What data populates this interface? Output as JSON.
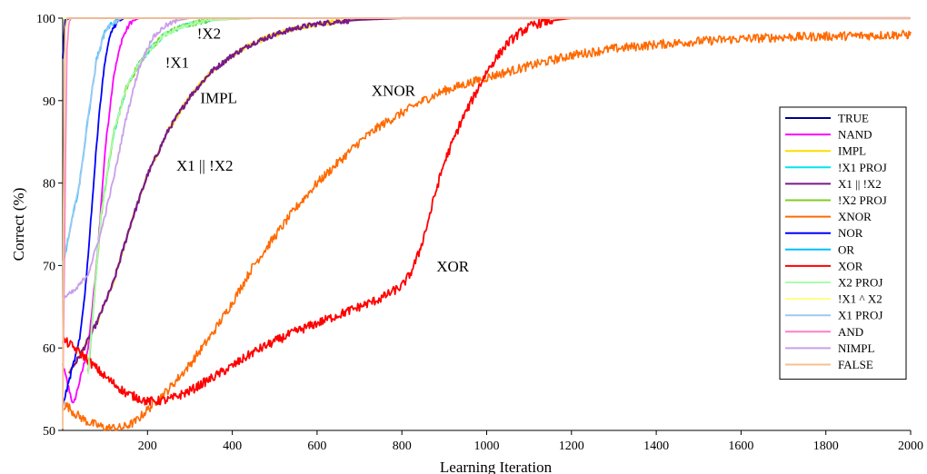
{
  "chart_data": {
    "type": "line",
    "xlabel": "Learning Iteration",
    "ylabel": "Correct (%)",
    "xlim": [
      0,
      2000
    ],
    "ylim": [
      50,
      100
    ],
    "xticks": [
      200,
      400,
      600,
      800,
      1000,
      1200,
      1400,
      1600,
      1800,
      2000
    ],
    "yticks": [
      50,
      60,
      70,
      80,
      90,
      100
    ],
    "grid": false,
    "legend_position": "right",
    "series": [
      {
        "name": "TRUE",
        "color": "#00008b",
        "width": 1.8,
        "x": [
          0,
          3,
          6,
          10,
          15,
          20,
          2000
        ],
        "y": [
          95,
          98,
          99.5,
          99.8,
          100,
          100,
          100
        ]
      },
      {
        "name": "NAND",
        "color": "#ff00ff",
        "width": 1.8,
        "x": [
          0,
          25,
          40,
          60,
          80,
          100,
          120,
          140,
          160,
          180,
          2000
        ],
        "y": [
          58,
          53,
          56,
          60,
          70,
          84,
          93,
          97.5,
          99.5,
          100,
          100
        ]
      },
      {
        "name": "IMPL",
        "color": "#ffdd00",
        "width": 1.8,
        "x": [
          15,
          40,
          80,
          120,
          160,
          200,
          250,
          300,
          350,
          400,
          450,
          500,
          550,
          600,
          650,
          700,
          750,
          800,
          900,
          1000,
          2000
        ],
        "y": [
          57,
          59,
          63,
          68,
          75,
          81,
          86.5,
          90.5,
          93.5,
          95.5,
          97,
          98,
          98.8,
          99.3,
          99.6,
          99.8,
          99.9,
          100,
          100,
          100,
          100
        ]
      },
      {
        "name": "!X1 PROJ",
        "color": "#00e5ee",
        "width": 1.8,
        "x": [
          60,
          90,
          120,
          150,
          180,
          210,
          240,
          280,
          320,
          360,
          400,
          450,
          500,
          550,
          2000
        ],
        "y": [
          57,
          76,
          86,
          91.5,
          94.5,
          96.5,
          98,
          99,
          99.5,
          99.8,
          99.9,
          100,
          100,
          100,
          100
        ]
      },
      {
        "name": "X1 || !X2",
        "color": "#7a1a8a",
        "width": 2.2,
        "x": [
          15,
          40,
          80,
          120,
          160,
          200,
          250,
          300,
          350,
          400,
          450,
          500,
          550,
          600,
          650,
          700,
          750,
          800,
          900,
          1000,
          2000
        ],
        "y": [
          57,
          59,
          63,
          68,
          75,
          81,
          86.5,
          90.5,
          93.5,
          95.5,
          97,
          98,
          98.8,
          99.3,
          99.6,
          99.8,
          99.9,
          100,
          100,
          100,
          100
        ]
      },
      {
        "name": "!X2 PROJ",
        "color": "#80cc20",
        "width": 2,
        "x": [
          60,
          90,
          120,
          150,
          180,
          210,
          240,
          280,
          320,
          360,
          400,
          450,
          500,
          550,
          2000
        ],
        "y": [
          57,
          76,
          86,
          91.5,
          94.5,
          96.5,
          98,
          99,
          99.5,
          99.8,
          99.9,
          100,
          100,
          100,
          100
        ]
      },
      {
        "name": "XNOR",
        "color": "#ff6a00",
        "width": 1.6,
        "x": [
          0,
          10,
          30,
          60,
          100,
          140,
          170,
          200,
          250,
          300,
          350,
          400,
          450,
          500,
          550,
          600,
          650,
          700,
          750,
          800,
          850,
          900,
          950,
          1000,
          1100,
          1200,
          1300,
          1400,
          1500,
          1600,
          1700,
          1800,
          1900,
          2000
        ],
        "y": [
          53,
          53,
          52,
          51,
          50.3,
          50.3,
          51,
          52.5,
          55,
          58,
          61.5,
          65.5,
          70,
          73.5,
          77,
          80,
          82.5,
          85,
          87,
          88.5,
          90,
          91.2,
          92,
          92.8,
          94.2,
          95.5,
          96.3,
          96.8,
          97.2,
          97.5,
          97.7,
          97.8,
          97.9,
          98
        ]
      },
      {
        "name": "NOR",
        "color": "#0000ff",
        "width": 1.8,
        "x": [
          0,
          20,
          40,
          55,
          70,
          85,
          100,
          115,
          130,
          145,
          2000
        ],
        "y": [
          53,
          57,
          61,
          68,
          78,
          88,
          95,
          98.5,
          99.5,
          100,
          100
        ]
      },
      {
        "name": "OR",
        "color": "#00bfff",
        "width": 1.8,
        "x": [
          0,
          20,
          40,
          60,
          80,
          100,
          120,
          140,
          2000
        ],
        "y": [
          70,
          75,
          80,
          88,
          95,
          98.5,
          99.5,
          100,
          100
        ]
      },
      {
        "name": "XOR",
        "color": "#ff0000",
        "width": 1.8,
        "x": [
          0,
          15,
          50,
          100,
          150,
          200,
          250,
          300,
          350,
          400,
          450,
          500,
          550,
          600,
          650,
          700,
          750,
          800,
          820,
          840,
          860,
          880,
          900,
          920,
          940,
          960,
          980,
          1000,
          1020,
          1050,
          1080,
          1110,
          1140,
          1170,
          1200,
          2000
        ],
        "y": [
          61,
          60.5,
          59,
          56.5,
          54.5,
          53.5,
          53.7,
          54.8,
          56.3,
          57.8,
          59.5,
          60.8,
          62,
          63,
          64,
          65,
          66,
          67.5,
          69,
          71.5,
          75,
          79,
          82.5,
          85,
          87.5,
          89.5,
          91.5,
          93.5,
          95,
          97,
          98.3,
          99.2,
          99.6,
          99.8,
          100,
          100
        ]
      },
      {
        "name": "X2 PROJ",
        "color": "#aaffaa",
        "width": 1.6,
        "x": [
          60,
          90,
          120,
          150,
          180,
          210,
          240,
          280,
          320,
          360,
          400,
          450,
          500,
          550,
          2000
        ],
        "y": [
          57,
          76,
          86,
          91.5,
          94.5,
          96.5,
          98,
          99,
          99.5,
          99.8,
          99.9,
          100,
          100,
          100,
          100
        ]
      },
      {
        "name": "!X1 ^ X2",
        "color": "#ffff80",
        "width": 1.6,
        "x": [
          0,
          4,
          8,
          2000
        ],
        "y": [
          100,
          100,
          100,
          100
        ]
      },
      {
        "name": "X1 PROJ",
        "color": "#9fc8f0",
        "width": 1.8,
        "x": [
          0,
          20,
          40,
          60,
          80,
          100,
          120,
          140,
          2000
        ],
        "y": [
          70,
          75,
          80,
          88,
          95,
          98.5,
          99.5,
          100,
          100
        ]
      },
      {
        "name": "AND",
        "color": "#ff80c0",
        "width": 1.6,
        "x": [
          0,
          6,
          10,
          15,
          20,
          2000
        ],
        "y": [
          52,
          80,
          96,
          99.5,
          100,
          100
        ]
      },
      {
        "name": "NIMPL",
        "color": "#c8a0e8",
        "width": 1.8,
        "x": [
          0,
          30,
          60,
          90,
          120,
          150,
          180,
          210,
          240,
          270,
          300,
          2000
        ],
        "y": [
          66,
          67,
          69,
          74,
          80.5,
          88,
          94,
          97.5,
          99,
          99.7,
          100,
          100
        ]
      },
      {
        "name": "FALSE",
        "color": "#f5c090",
        "width": 1.8,
        "x": [
          0,
          3,
          6,
          10,
          2000
        ],
        "y": [
          50,
          90,
          99,
          100,
          100
        ]
      }
    ],
    "annotations": [
      {
        "text": "!X2",
        "x": 345,
        "y": 97.5
      },
      {
        "text": "!X1",
        "x": 270,
        "y": 94
      },
      {
        "text": "IMPL",
        "x": 368,
        "y": 89.7
      },
      {
        "text": "X1 || !X2",
        "x": 335,
        "y": 81.5
      },
      {
        "text": "XNOR",
        "x": 780,
        "y": 90.6
      },
      {
        "text": "XOR",
        "x": 920,
        "y": 69.3
      }
    ]
  }
}
